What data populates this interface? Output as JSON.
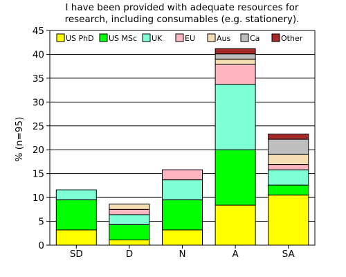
{
  "chart_data": {
    "type": "bar",
    "stacked": true,
    "title": [
      "I have been provided with adequate resources for",
      "research, including consumables (e.g. stationery)."
    ],
    "xlabel": "",
    "ylabel": "% (n=95)",
    "ylim": [
      0,
      45
    ],
    "yticks": [
      0,
      5,
      10,
      15,
      20,
      25,
      30,
      35,
      40,
      45
    ],
    "grid": "horizontal",
    "legend_position": "top, inside plot",
    "categories": [
      "SD",
      "D",
      "N",
      "A",
      "SA"
    ],
    "series": [
      {
        "name": "US PhD",
        "color": "#ffff00",
        "values": [
          3.2,
          1.1,
          3.2,
          8.4,
          10.5
        ]
      },
      {
        "name": "US MSc",
        "color": "#00ff00",
        "values": [
          6.3,
          3.2,
          6.3,
          11.6,
          2.1
        ]
      },
      {
        "name": "UK",
        "color": "#7fffd4",
        "values": [
          2.1,
          2.1,
          4.2,
          13.7,
          3.2
        ]
      },
      {
        "name": "EU",
        "color": "#ffb6c1",
        "values": [
          0,
          1.1,
          2.1,
          4.2,
          1.1
        ]
      },
      {
        "name": "Aus",
        "color": "#f5deb3",
        "values": [
          0,
          1.1,
          0,
          1.1,
          2.1
        ]
      },
      {
        "name": "Ca",
        "color": "#bebebe",
        "values": [
          0,
          0,
          0,
          1.1,
          3.2
        ]
      },
      {
        "name": "Other",
        "color": "#a52a2a",
        "values": [
          0,
          0,
          0,
          1.1,
          1.1
        ]
      }
    ]
  }
}
